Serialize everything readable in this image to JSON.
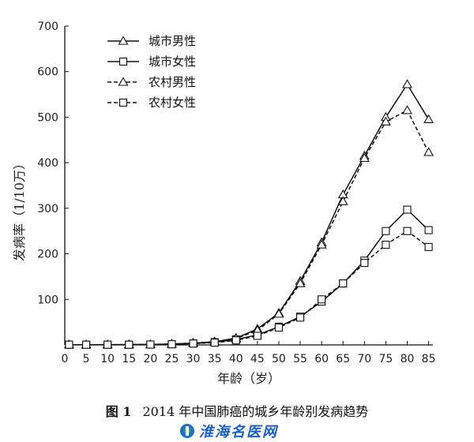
{
  "chart_data": {
    "type": "line",
    "xlabel": "年龄（岁）",
    "ylabel": "发病率（1/10万）",
    "xlim": [
      0,
      86
    ],
    "ylim": [
      0,
      700
    ],
    "x_ticks": [
      0,
      5,
      10,
      15,
      20,
      25,
      30,
      35,
      40,
      45,
      50,
      55,
      60,
      65,
      70,
      75,
      80,
      85
    ],
    "y_ticks": [
      100,
      200,
      300,
      400,
      500,
      600,
      700
    ],
    "x": [
      1,
      5,
      10,
      15,
      20,
      25,
      30,
      35,
      40,
      45,
      50,
      55,
      60,
      65,
      70,
      75,
      80,
      85
    ],
    "legend_position": "top-left",
    "grid": false,
    "series": [
      {
        "name": "城市男性",
        "marker": "triangle",
        "style": "solid",
        "values": [
          0.5,
          0.5,
          0.5,
          0.8,
          1,
          2,
          4,
          7,
          15,
          35,
          70,
          140,
          225,
          330,
          415,
          500,
          572,
          495
        ]
      },
      {
        "name": "城市女性",
        "marker": "square",
        "style": "solid",
        "values": [
          0.5,
          0.5,
          0.5,
          0.5,
          0.8,
          1.5,
          3,
          6,
          12,
          22,
          40,
          62,
          95,
          135,
          185,
          250,
          297,
          252
        ]
      },
      {
        "name": "农村男性",
        "marker": "triangle",
        "style": "dashed",
        "values": [
          0.5,
          0.5,
          0.5,
          0.8,
          1,
          2,
          4,
          7,
          14,
          32,
          68,
          135,
          220,
          315,
          410,
          490,
          515,
          423
        ]
      },
      {
        "name": "农村女性",
        "marker": "square",
        "style": "dashed",
        "values": [
          0.5,
          0.5,
          0.5,
          0.5,
          0.8,
          1.5,
          3,
          5,
          10,
          20,
          38,
          60,
          100,
          135,
          180,
          220,
          250,
          215
        ]
      }
    ]
  },
  "caption": {
    "fig_num": "图 1",
    "text": "2014 年中国肺癌的城乡年龄别发病趋势"
  },
  "watermark": {
    "text": "淮海名医网",
    "icon": "medical-cross-icon"
  }
}
